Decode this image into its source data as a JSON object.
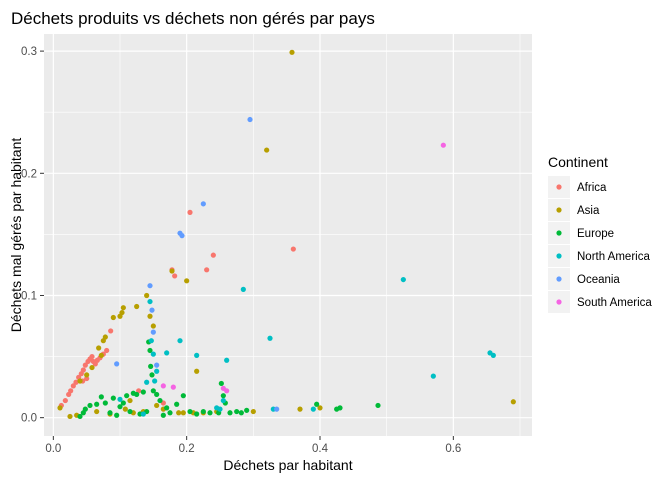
{
  "chart_data": {
    "type": "scatter",
    "title": "Déchets produits vs déchets non gérés par pays",
    "xlabel": "Déchets par habitant",
    "ylabel": "Déchets mal gérés par habitant",
    "xlim": [
      -0.014,
      0.718
    ],
    "ylim": [
      -0.015,
      0.314
    ],
    "x_ticks": [
      {
        "value": 0.0,
        "label": "0.0"
      },
      {
        "value": 0.2,
        "label": "0.2"
      },
      {
        "value": 0.4,
        "label": "0.4"
      },
      {
        "value": 0.6,
        "label": "0.6"
      }
    ],
    "y_ticks": [
      {
        "value": 0.0,
        "label": "0.0"
      },
      {
        "value": 0.1,
        "label": "0.1"
      },
      {
        "value": 0.2,
        "label": "0.2"
      },
      {
        "value": 0.3,
        "label": "0.3"
      }
    ],
    "grid": true,
    "background": "#ebebeb",
    "legend": {
      "title": "Continent",
      "position": "right"
    },
    "series": [
      {
        "name": "Africa",
        "color": "#F8766D",
        "points": [
          [
            0.012,
            0.01
          ],
          [
            0.018,
            0.014
          ],
          [
            0.023,
            0.019
          ],
          [
            0.026,
            0.022
          ],
          [
            0.03,
            0.026
          ],
          [
            0.034,
            0.029
          ],
          [
            0.038,
            0.033
          ],
          [
            0.042,
            0.036
          ],
          [
            0.045,
            0.039
          ],
          [
            0.048,
            0.043
          ],
          [
            0.052,
            0.046
          ],
          [
            0.055,
            0.048
          ],
          [
            0.058,
            0.05
          ],
          [
            0.06,
            0.046
          ],
          [
            0.063,
            0.044
          ],
          [
            0.066,
            0.047
          ],
          [
            0.07,
            0.049
          ],
          [
            0.075,
            0.052
          ],
          [
            0.08,
            0.055
          ],
          [
            0.086,
            0.071
          ],
          [
            0.05,
            0.032
          ],
          [
            0.044,
            0.03
          ],
          [
            0.128,
            0.022
          ],
          [
            0.165,
            0.012
          ],
          [
            0.178,
            0.121
          ],
          [
            0.182,
            0.116
          ],
          [
            0.205,
            0.168
          ],
          [
            0.23,
            0.121
          ],
          [
            0.24,
            0.133
          ],
          [
            0.36,
            0.138
          ]
        ]
      },
      {
        "name": "Asia",
        "color": "#B79F00",
        "points": [
          [
            0.01,
            0.008
          ],
          [
            0.025,
            0.001
          ],
          [
            0.035,
            0.002
          ],
          [
            0.04,
            0.03
          ],
          [
            0.05,
            0.035
          ],
          [
            0.058,
            0.041
          ],
          [
            0.065,
            0.005
          ],
          [
            0.068,
            0.057
          ],
          [
            0.072,
            0.051
          ],
          [
            0.075,
            0.063
          ],
          [
            0.078,
            0.066
          ],
          [
            0.085,
            0.003
          ],
          [
            0.09,
            0.082
          ],
          [
            0.1,
            0.083
          ],
          [
            0.103,
            0.086
          ],
          [
            0.105,
            0.09
          ],
          [
            0.108,
            0.007
          ],
          [
            0.115,
            0.014
          ],
          [
            0.12,
            0.004
          ],
          [
            0.125,
            0.091
          ],
          [
            0.135,
            0.005
          ],
          [
            0.14,
            0.1
          ],
          [
            0.145,
            0.083
          ],
          [
            0.15,
            0.075
          ],
          [
            0.155,
            0.01
          ],
          [
            0.165,
            0.007
          ],
          [
            0.178,
            0.12
          ],
          [
            0.188,
            0.004
          ],
          [
            0.195,
            0.004
          ],
          [
            0.2,
            0.112
          ],
          [
            0.21,
            0.004
          ],
          [
            0.215,
            0.038
          ],
          [
            0.225,
            0.004
          ],
          [
            0.245,
            0.005
          ],
          [
            0.3,
            0.005
          ],
          [
            0.32,
            0.219
          ],
          [
            0.358,
            0.299
          ],
          [
            0.37,
            0.007
          ],
          [
            0.4,
            0.008
          ],
          [
            0.69,
            0.013
          ]
        ]
      },
      {
        "name": "Europe",
        "color": "#00BA38",
        "points": [
          [
            0.04,
            0.001
          ],
          [
            0.045,
            0.004
          ],
          [
            0.048,
            0.007
          ],
          [
            0.055,
            0.01
          ],
          [
            0.065,
            0.011
          ],
          [
            0.072,
            0.017
          ],
          [
            0.078,
            0.012
          ],
          [
            0.085,
            0.004
          ],
          [
            0.09,
            0.016
          ],
          [
            0.095,
            0.002
          ],
          [
            0.1,
            0.009
          ],
          [
            0.105,
            0.012
          ],
          [
            0.11,
            0.018
          ],
          [
            0.115,
            0.005
          ],
          [
            0.12,
            0.02
          ],
          [
            0.125,
            0.019
          ],
          [
            0.13,
            0.003
          ],
          [
            0.135,
            0.021
          ],
          [
            0.14,
            0.005
          ],
          [
            0.143,
            0.062
          ],
          [
            0.145,
            0.055
          ],
          [
            0.146,
            0.042
          ],
          [
            0.148,
            0.035
          ],
          [
            0.15,
            0.022
          ],
          [
            0.155,
            0.019
          ],
          [
            0.16,
            0.014
          ],
          [
            0.165,
            0.002
          ],
          [
            0.17,
            0.008
          ],
          [
            0.175,
            0.004
          ],
          [
            0.185,
            0.011
          ],
          [
            0.195,
            0.018
          ],
          [
            0.205,
            0.005
          ],
          [
            0.215,
            0.003
          ],
          [
            0.225,
            0.005
          ],
          [
            0.235,
            0.004
          ],
          [
            0.248,
            0.004
          ],
          [
            0.252,
            0.028
          ],
          [
            0.255,
            0.018
          ],
          [
            0.258,
            0.012
          ],
          [
            0.265,
            0.004
          ],
          [
            0.275,
            0.005
          ],
          [
            0.282,
            0.004
          ],
          [
            0.29,
            0.006
          ],
          [
            0.395,
            0.011
          ],
          [
            0.425,
            0.007
          ],
          [
            0.43,
            0.008
          ],
          [
            0.487,
            0.01
          ]
        ]
      },
      {
        "name": "North America",
        "color": "#00BFC4",
        "points": [
          [
            0.1,
            0.015
          ],
          [
            0.135,
            0.003
          ],
          [
            0.14,
            0.029
          ],
          [
            0.145,
            0.095
          ],
          [
            0.147,
            0.063
          ],
          [
            0.15,
            0.052
          ],
          [
            0.152,
            0.03
          ],
          [
            0.155,
            0.038
          ],
          [
            0.17,
            0.053
          ],
          [
            0.19,
            0.063
          ],
          [
            0.215,
            0.051
          ],
          [
            0.245,
            0.008
          ],
          [
            0.25,
            0.007
          ],
          [
            0.255,
            0.014
          ],
          [
            0.26,
            0.047
          ],
          [
            0.285,
            0.105
          ],
          [
            0.325,
            0.065
          ],
          [
            0.33,
            0.007
          ],
          [
            0.39,
            0.007
          ],
          [
            0.525,
            0.113
          ],
          [
            0.57,
            0.034
          ],
          [
            0.655,
            0.053
          ],
          [
            0.66,
            0.051
          ]
        ]
      },
      {
        "name": "Oceania",
        "color": "#619CFF",
        "points": [
          [
            0.095,
            0.044
          ],
          [
            0.145,
            0.108
          ],
          [
            0.148,
            0.088
          ],
          [
            0.15,
            0.07
          ],
          [
            0.155,
            0.043
          ],
          [
            0.19,
            0.151
          ],
          [
            0.193,
            0.149
          ],
          [
            0.225,
            0.175
          ],
          [
            0.295,
            0.244
          ],
          [
            0.335,
            0.007
          ]
        ]
      },
      {
        "name": "South America",
        "color": "#F564E3",
        "points": [
          [
            0.165,
            0.026
          ],
          [
            0.18,
            0.025
          ],
          [
            0.255,
            0.024
          ],
          [
            0.26,
            0.022
          ],
          [
            0.585,
            0.223
          ]
        ]
      }
    ]
  }
}
